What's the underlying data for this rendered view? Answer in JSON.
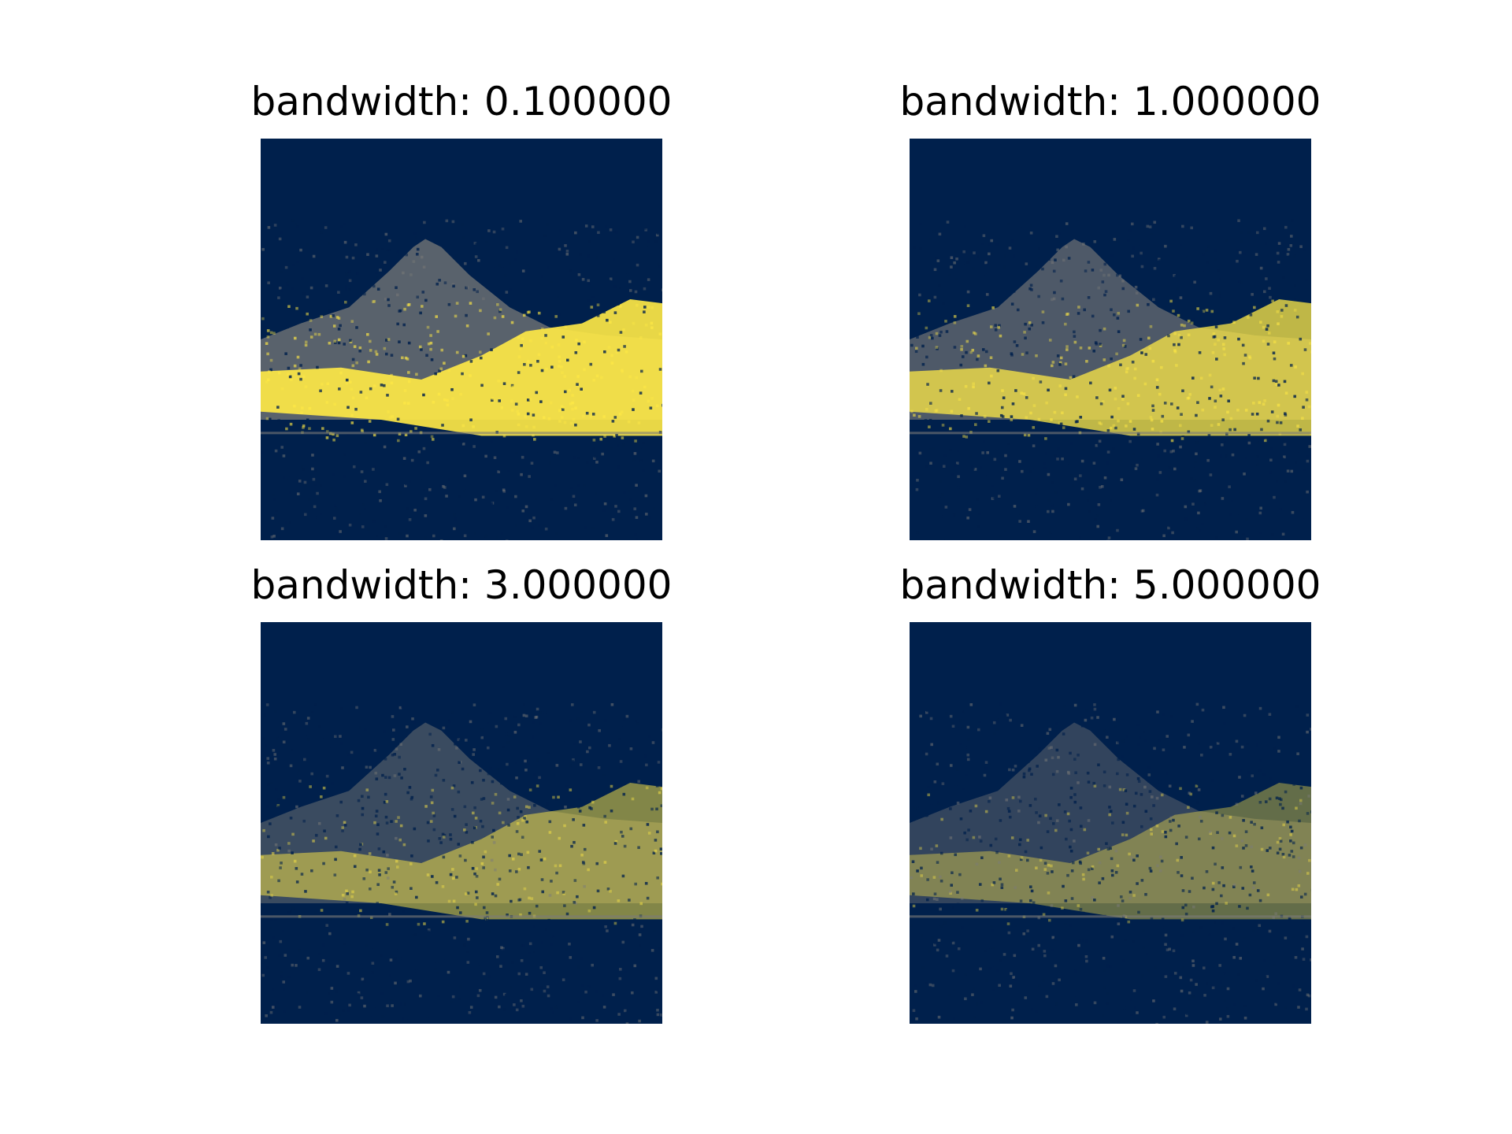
{
  "colors": {
    "background": "#ffffff",
    "colormap_low": "#00204c",
    "colormap_mid": "#7c7b78",
    "colormap_high": "#ffe945"
  },
  "panels": [
    {
      "title": "bandwidth: 0.100000",
      "highlight_level": 0.95
    },
    {
      "title": "bandwidth: 1.000000",
      "highlight_level": 0.75
    },
    {
      "title": "bandwidth: 3.000000",
      "highlight_level": 0.45
    },
    {
      "title": "bandwidth: 5.000000",
      "highlight_level": 0.3
    }
  ]
}
